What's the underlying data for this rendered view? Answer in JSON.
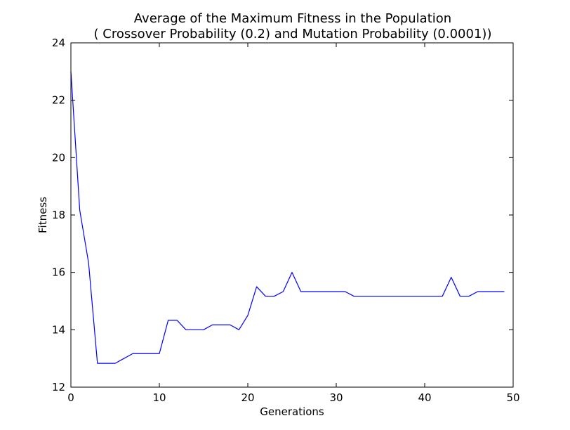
{
  "chart_data": {
    "type": "line",
    "title": "Average of the Maximum Fitness in the Population",
    "subtitle": "( Crossover Probability (0.2) and Mutation Probability (0.0001))",
    "xlabel": "Generations",
    "ylabel": "Fitness",
    "xlim": [
      0,
      50
    ],
    "ylim": [
      12,
      24
    ],
    "xticks": [
      0,
      10,
      20,
      30,
      40,
      50
    ],
    "yticks": [
      12,
      14,
      16,
      18,
      20,
      22,
      24
    ],
    "grid": false,
    "line_color": "#0000ff",
    "x": [
      0,
      1,
      2,
      3,
      4,
      5,
      6,
      7,
      8,
      9,
      10,
      11,
      12,
      13,
      14,
      15,
      16,
      17,
      18,
      19,
      20,
      21,
      22,
      23,
      24,
      25,
      26,
      27,
      28,
      29,
      30,
      31,
      32,
      33,
      34,
      35,
      36,
      37,
      38,
      39,
      40,
      41,
      42,
      43,
      44,
      45,
      46,
      47,
      48,
      49
    ],
    "series": [
      {
        "values": [
          23.0,
          18.17,
          16.33,
          12.83,
          12.83,
          12.83,
          13.0,
          13.17,
          13.17,
          13.17,
          13.17,
          14.33,
          14.33,
          14.0,
          14.0,
          14.0,
          14.17,
          14.17,
          14.17,
          14.0,
          14.5,
          15.5,
          15.17,
          15.17,
          15.33,
          16.0,
          15.33,
          15.33,
          15.33,
          15.33,
          15.33,
          15.33,
          15.17,
          15.17,
          15.17,
          15.17,
          15.17,
          15.17,
          15.17,
          15.17,
          15.17,
          15.17,
          15.17,
          15.83,
          15.17,
          15.17,
          15.33,
          15.33,
          15.33,
          15.33
        ]
      }
    ]
  }
}
